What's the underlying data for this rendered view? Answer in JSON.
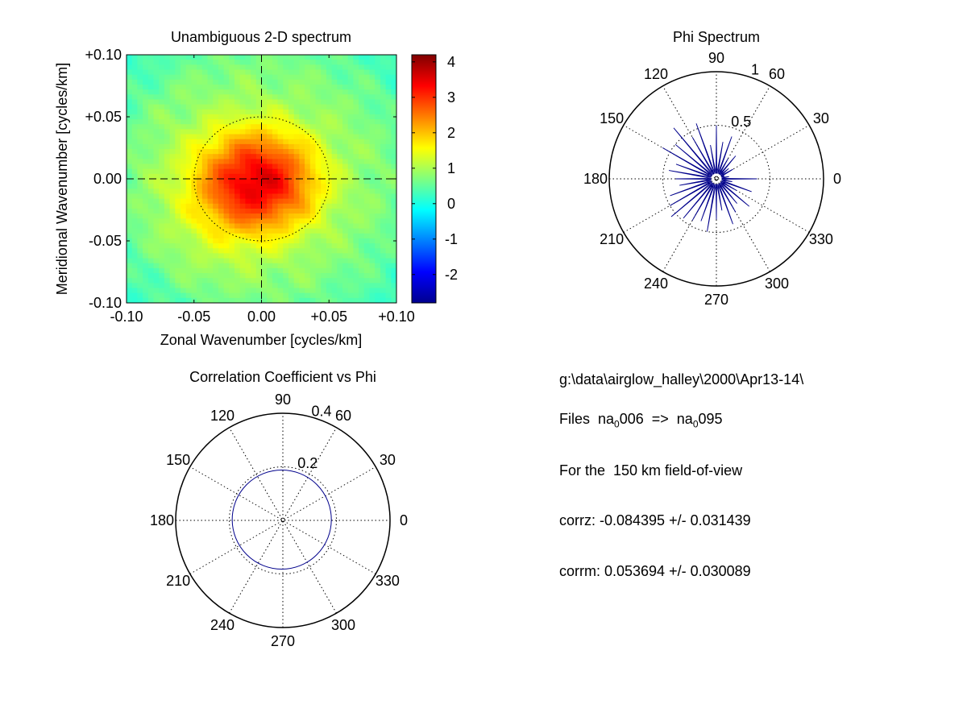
{
  "chart_data": [
    {
      "type": "heatmap",
      "title": "Unambiguous 2-D spectrum",
      "xlabel": "Zonal Wavenumber [cycles/km]",
      "ylabel": "Meridional Wavenumber [cycles/km]",
      "xlim": [
        -0.1,
        0.1
      ],
      "ylim": [
        -0.1,
        0.1
      ],
      "x_ticks": [
        "-0.10",
        "-0.05",
        "0.00",
        "+0.05",
        "+0.10"
      ],
      "y_ticks": [
        "+0.10",
        "+0.05",
        "0.00",
        "-0.05",
        "-0.10"
      ],
      "colorbar": {
        "range": [
          -2.8,
          4.2
        ],
        "ticks": [
          "4",
          "3",
          "2",
          "1",
          "0",
          "-1",
          "-2"
        ],
        "tick_values": [
          4,
          3,
          2,
          1,
          0,
          -1,
          -2
        ],
        "colormap": "jet"
      },
      "peak": {
        "x": 0.003,
        "y": -0.002,
        "value": 4.0
      },
      "circle_radius": 0.05,
      "crosshair": {
        "x": 0.0,
        "y": 0.0
      }
    },
    {
      "type": "polar",
      "title": "Phi Spectrum",
      "rmax": 1.0,
      "r_ticks": [
        {
          "value": 0.5,
          "label": "0.5"
        },
        {
          "value": 1.0,
          "label": "1"
        }
      ],
      "angle_ticks": [
        "0",
        "30",
        "60",
        "90",
        "120",
        "150",
        "180",
        "210",
        "240",
        "300",
        "270",
        "330"
      ],
      "angle_values": [
        0,
        30,
        60,
        90,
        120,
        150,
        180,
        210,
        240,
        300,
        270,
        330
      ],
      "series": [
        {
          "angles_deg": [
            0,
            10,
            20,
            30,
            40,
            50,
            60,
            70,
            80,
            90,
            100,
            110,
            120,
            130,
            140,
            150,
            160,
            170,
            180,
            190,
            200,
            210,
            220,
            230,
            240,
            250,
            260,
            270,
            280,
            290,
            300,
            310,
            320,
            330,
            340,
            350
          ],
          "r": [
            0.38,
            0.12,
            0.08,
            0.18,
            0.15,
            0.28,
            0.22,
            0.42,
            0.35,
            0.5,
            0.32,
            0.55,
            0.45,
            0.62,
            0.5,
            0.58,
            0.4,
            0.45,
            0.38,
            0.35,
            0.46,
            0.5,
            0.55,
            0.48,
            0.45,
            0.42,
            0.5,
            0.38,
            0.3,
            0.45,
            0.36,
            0.3,
            0.4,
            0.22,
            0.35,
            0.15
          ],
          "color": "#00008b"
        }
      ]
    },
    {
      "type": "polar",
      "title": "Correlation Coefficient vs Phi",
      "rmax": 0.4,
      "r_ticks": [
        {
          "value": 0.2,
          "label": "0.2"
        },
        {
          "value": 0.4,
          "label": "0.4"
        }
      ],
      "angle_ticks": [
        "0",
        "30",
        "60",
        "90",
        "120",
        "150",
        "180",
        "210",
        "240",
        "300",
        "270",
        "330"
      ],
      "angle_values": [
        0,
        30,
        60,
        90,
        120,
        150,
        180,
        210,
        240,
        300,
        270,
        330
      ],
      "series": [
        {
          "shape": "circle",
          "center_x": -0.004,
          "center_y": 0.003,
          "radius": 0.185,
          "color": "#00008b"
        }
      ]
    }
  ],
  "info": {
    "path": "g:\\data\\airglow_halley\\2000\\Apr13-14\\",
    "files_label": "Files  na",
    "files_sub1": "0",
    "files_mid": "006  =>  na",
    "files_sub2": "0",
    "files_end": "095",
    "fov": "For the  150 km field-of-view",
    "corrz": "corrz: -0.084395 +/- 0.031439",
    "corrm": "corrm: 0.053694 +/- 0.030089"
  }
}
